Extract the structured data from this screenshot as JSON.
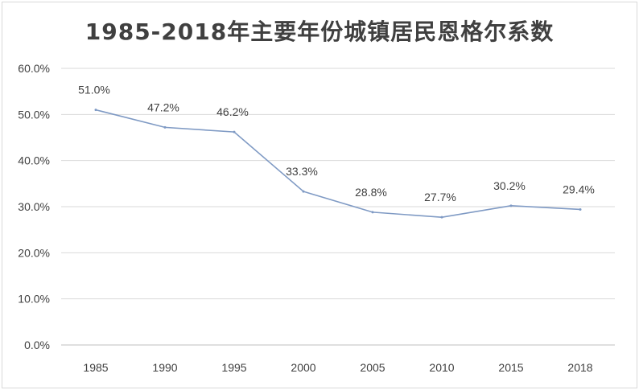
{
  "chart_data": {
    "type": "line",
    "title": "1985-2018年主要年份城镇居民恩格尔系数",
    "xlabel": "",
    "ylabel": "",
    "categories": [
      "1985",
      "1990",
      "1995",
      "2000",
      "2005",
      "2010",
      "2015",
      "2018"
    ],
    "series": [
      {
        "values": [
          51.0,
          47.2,
          46.2,
          33.3,
          28.8,
          27.7,
          30.2,
          29.4
        ],
        "labels": [
          "51.0%",
          "47.2%",
          "46.2%",
          "33.3%",
          "28.8%",
          "27.7%",
          "30.2%",
          "29.4%"
        ],
        "color": "#7f9ac4"
      }
    ],
    "ylim": [
      0,
      60
    ],
    "yticks": [
      "0.0%",
      "10.0%",
      "20.0%",
      "30.0%",
      "40.0%",
      "50.0%",
      "60.0%"
    ],
    "grid": "horizontal",
    "grid_color": "#d9d9d9",
    "legend": "none"
  }
}
